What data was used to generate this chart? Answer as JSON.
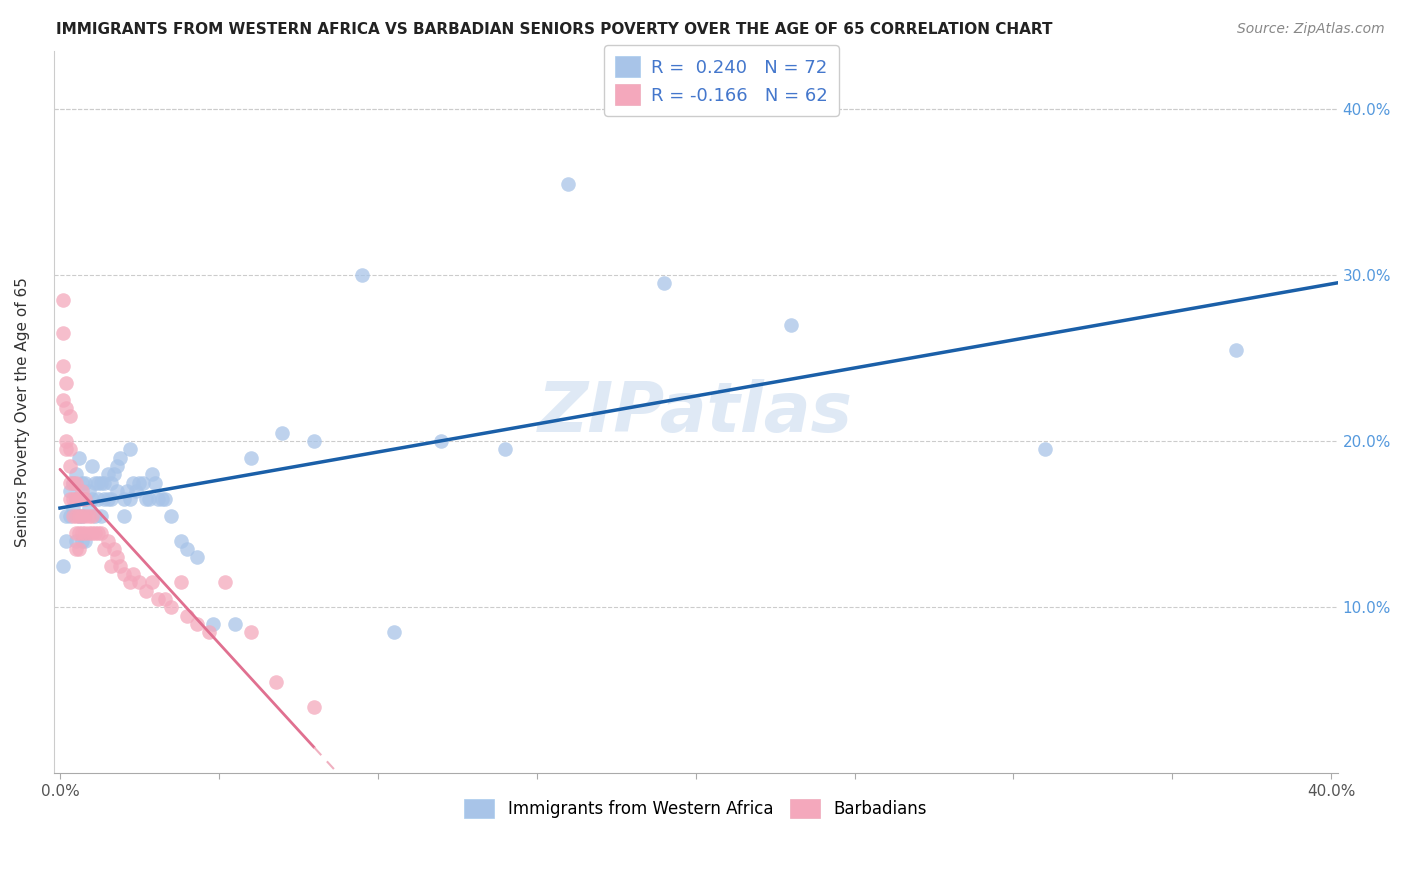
{
  "title": "IMMIGRANTS FROM WESTERN AFRICA VS BARBADIAN SENIORS POVERTY OVER THE AGE OF 65 CORRELATION CHART",
  "source": "Source: ZipAtlas.com",
  "ylabel": "Seniors Poverty Over the Age of 65",
  "xlim": [
    -0.002,
    0.402
  ],
  "ylim": [
    0.0,
    0.435
  ],
  "xtick_positions": [
    0.0,
    0.05,
    0.1,
    0.15,
    0.2,
    0.25,
    0.3,
    0.35,
    0.4
  ],
  "xticklabels": [
    "0.0%",
    "",
    "",
    "",
    "",
    "",
    "",
    "",
    "40.0%"
  ],
  "ytick_positions": [
    0.0,
    0.1,
    0.2,
    0.3,
    0.4
  ],
  "yticklabels_right": [
    "",
    "10.0%",
    "20.0%",
    "30.0%",
    "40.0%"
  ],
  "blue_R": "0.240",
  "blue_N": "72",
  "pink_R": "-0.166",
  "pink_N": "62",
  "blue_scatter_color": "#a8c4e8",
  "pink_scatter_color": "#f4a8bc",
  "blue_line_color": "#1a5fa8",
  "pink_line_color": "#e07090",
  "pink_line_dash_color": "#f0b0c0",
  "legend_blue_color": "#a8c4e8",
  "legend_pink_color": "#f4a8bc",
  "watermark": "ZIPatlas",
  "grid_color": "#cccccc",
  "title_color": "#222222",
  "source_color": "#888888",
  "right_tick_color": "#5599dd",
  "blue_scatter_x": [
    0.001,
    0.002,
    0.002,
    0.003,
    0.003,
    0.004,
    0.004,
    0.005,
    0.005,
    0.005,
    0.006,
    0.006,
    0.007,
    0.007,
    0.007,
    0.008,
    0.008,
    0.008,
    0.009,
    0.009,
    0.01,
    0.01,
    0.011,
    0.011,
    0.012,
    0.012,
    0.013,
    0.013,
    0.014,
    0.014,
    0.015,
    0.015,
    0.016,
    0.016,
    0.017,
    0.018,
    0.018,
    0.019,
    0.02,
    0.02,
    0.021,
    0.022,
    0.022,
    0.023,
    0.024,
    0.025,
    0.026,
    0.027,
    0.028,
    0.029,
    0.03,
    0.031,
    0.032,
    0.033,
    0.035,
    0.038,
    0.04,
    0.043,
    0.048,
    0.055,
    0.06,
    0.07,
    0.08,
    0.095,
    0.105,
    0.12,
    0.14,
    0.16,
    0.19,
    0.23,
    0.31,
    0.37
  ],
  "blue_scatter_y": [
    0.125,
    0.155,
    0.14,
    0.17,
    0.155,
    0.175,
    0.16,
    0.18,
    0.165,
    0.14,
    0.19,
    0.155,
    0.175,
    0.155,
    0.14,
    0.165,
    0.175,
    0.14,
    0.17,
    0.16,
    0.185,
    0.165,
    0.175,
    0.155,
    0.175,
    0.165,
    0.175,
    0.155,
    0.165,
    0.175,
    0.18,
    0.165,
    0.175,
    0.165,
    0.18,
    0.17,
    0.185,
    0.19,
    0.165,
    0.155,
    0.17,
    0.165,
    0.195,
    0.175,
    0.17,
    0.175,
    0.175,
    0.165,
    0.165,
    0.18,
    0.175,
    0.165,
    0.165,
    0.165,
    0.155,
    0.14,
    0.135,
    0.13,
    0.09,
    0.09,
    0.19,
    0.205,
    0.2,
    0.3,
    0.085,
    0.2,
    0.195,
    0.355,
    0.295,
    0.27,
    0.195,
    0.255
  ],
  "pink_scatter_x": [
    0.001,
    0.001,
    0.001,
    0.001,
    0.002,
    0.002,
    0.002,
    0.002,
    0.003,
    0.003,
    0.003,
    0.003,
    0.003,
    0.004,
    0.004,
    0.004,
    0.005,
    0.005,
    0.005,
    0.005,
    0.005,
    0.006,
    0.006,
    0.006,
    0.006,
    0.007,
    0.007,
    0.007,
    0.007,
    0.008,
    0.008,
    0.008,
    0.009,
    0.009,
    0.01,
    0.01,
    0.011,
    0.012,
    0.013,
    0.014,
    0.015,
    0.016,
    0.017,
    0.018,
    0.019,
    0.02,
    0.022,
    0.023,
    0.025,
    0.027,
    0.029,
    0.031,
    0.033,
    0.035,
    0.038,
    0.04,
    0.043,
    0.047,
    0.052,
    0.06,
    0.068,
    0.08
  ],
  "pink_scatter_y": [
    0.285,
    0.265,
    0.245,
    0.225,
    0.235,
    0.22,
    0.2,
    0.195,
    0.215,
    0.195,
    0.185,
    0.175,
    0.165,
    0.175,
    0.165,
    0.155,
    0.175,
    0.165,
    0.155,
    0.145,
    0.135,
    0.165,
    0.155,
    0.145,
    0.135,
    0.17,
    0.165,
    0.155,
    0.145,
    0.165,
    0.155,
    0.145,
    0.155,
    0.145,
    0.155,
    0.145,
    0.145,
    0.145,
    0.145,
    0.135,
    0.14,
    0.125,
    0.135,
    0.13,
    0.125,
    0.12,
    0.115,
    0.12,
    0.115,
    0.11,
    0.115,
    0.105,
    0.105,
    0.1,
    0.115,
    0.095,
    0.09,
    0.085,
    0.115,
    0.085,
    0.055,
    0.04
  ]
}
